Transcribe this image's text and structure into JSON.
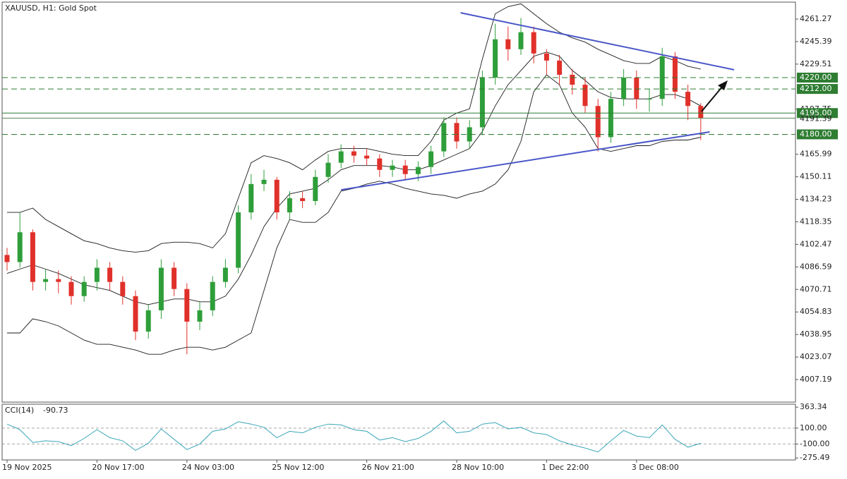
{
  "chart_data": {
    "type": "candlestick",
    "title": "XAUUSD, H1:  Gold Spot",
    "x": [
      "19 Nov 2025",
      null,
      null,
      null,
      null,
      null,
      null,
      "20 Nov 17:00",
      null,
      null,
      null,
      null,
      null,
      null,
      "24 Nov 03:00",
      null,
      null,
      null,
      null,
      null,
      null,
      "25 Nov 12:00",
      null,
      null,
      null,
      null,
      null,
      null,
      "26 Nov 21:00",
      null,
      null,
      null,
      null,
      null,
      null,
      "28 Nov 10:00",
      null,
      null,
      null,
      null,
      null,
      null,
      "1 Dec 22:00",
      null,
      null,
      null,
      null,
      null,
      null,
      "3 Dec 08:00",
      null,
      null,
      null,
      null,
      null
    ],
    "open": [
      4095,
      4090,
      4111,
      4076,
      4078,
      4076,
      4066,
      4076,
      4086,
      4076,
      4066,
      4041,
      4056,
      4086,
      4071,
      4048,
      4056,
      4076,
      4086,
      4125,
      4145,
      4148,
      4125,
      4135,
      4133,
      4150,
      4160,
      4168,
      4165,
      4163,
      4155,
      4158,
      4152,
      4157,
      4168,
      4188,
      4175,
      4185,
      4220,
      4247,
      4240,
      4252,
      4237,
      4232,
      4222,
      4215,
      4200,
      4178,
      4205,
      4220,
      4205,
      4205,
      4235,
      4210,
      4200
    ],
    "high": [
      4100,
      4125,
      4113,
      4085,
      4084,
      4080,
      4080,
      4092,
      4090,
      4080,
      4070,
      4060,
      4092,
      4090,
      4075,
      4062,
      4080,
      4092,
      4130,
      4152,
      4155,
      4150,
      4140,
      4140,
      4155,
      4166,
      4173,
      4172,
      4170,
      4166,
      4162,
      4162,
      4161,
      4172,
      4192,
      4192,
      4190,
      4225,
      4258,
      4256,
      4262,
      4256,
      4240,
      4236,
      4226,
      4220,
      4205,
      4210,
      4226,
      4225,
      4212,
      4241,
      4238,
      4215,
      4202
    ],
    "low": [
      4084,
      4086,
      4070,
      4070,
      4068,
      4060,
      4062,
      4070,
      4070,
      4060,
      4035,
      4036,
      4050,
      4066,
      4025,
      4042,
      4052,
      4072,
      4082,
      4120,
      4140,
      4120,
      4120,
      4128,
      4130,
      4146,
      4156,
      4160,
      4158,
      4150,
      4150,
      4148,
      4147,
      4152,
      4164,
      4170,
      4170,
      4180,
      4215,
      4232,
      4236,
      4230,
      4222,
      4215,
      4208,
      4195,
      4168,
      4174,
      4200,
      4198,
      4196,
      4200,
      4205,
      4190,
      4176
    ],
    "close": [
      4090,
      4111,
      4076,
      4078,
      4076,
      4066,
      4076,
      4086,
      4076,
      4066,
      4041,
      4056,
      4086,
      4071,
      4048,
      4056,
      4076,
      4086,
      4125,
      4145,
      4148,
      4125,
      4135,
      4133,
      4150,
      4160,
      4168,
      4165,
      4163,
      4155,
      4158,
      4152,
      4157,
      4168,
      4188,
      4175,
      4185,
      4220,
      4247,
      4240,
      4252,
      4237,
      4232,
      4222,
      4215,
      4200,
      4178,
      4205,
      4220,
      4205,
      4205,
      4235,
      4210,
      4200,
      4191.39
    ],
    "up_color": "#2e9e3a",
    "down_color": "#e0302a",
    "bollinger": {
      "color": "#1a1a1a",
      "upper": [
        4125,
        4125,
        4128,
        4120,
        4115,
        4110,
        4105,
        4103,
        4100,
        4098,
        4097,
        4098,
        4103,
        4104,
        4104,
        4103,
        4100,
        4110,
        4135,
        4160,
        4165,
        4163,
        4160,
        4155,
        4162,
        4168,
        4170,
        4170,
        4170,
        4168,
        4166,
        4165,
        4165,
        4175,
        4190,
        4195,
        4198,
        4233,
        4265,
        4270,
        4272,
        4265,
        4258,
        4252,
        4248,
        4245,
        4240,
        4236,
        4232,
        4230,
        4230,
        4235,
        4232,
        4228,
        4226
      ],
      "middle": [
        4082,
        4085,
        4088,
        4085,
        4082,
        4078,
        4074,
        4072,
        4070,
        4066,
        4062,
        4060,
        4062,
        4064,
        4064,
        4062,
        4062,
        4066,
        4078,
        4095,
        4115,
        4128,
        4138,
        4140,
        4142,
        4148,
        4155,
        4158,
        4158,
        4158,
        4157,
        4155,
        4155,
        4158,
        4162,
        4166,
        4170,
        4182,
        4200,
        4215,
        4225,
        4235,
        4238,
        4235,
        4225,
        4218,
        4210,
        4206,
        4205,
        4205,
        4205,
        4208,
        4208,
        4205,
        4200
      ],
      "lower": [
        4040,
        4040,
        4050,
        4048,
        4045,
        4040,
        4035,
        4032,
        4032,
        4030,
        4028,
        4025,
        4025,
        4028,
        4030,
        4030,
        4028,
        4030,
        4035,
        4040,
        4070,
        4100,
        4120,
        4118,
        4118,
        4125,
        4140,
        4142,
        4145,
        4147,
        4145,
        4142,
        4140,
        4138,
        4137,
        4135,
        4138,
        4140,
        4145,
        4155,
        4175,
        4210,
        4222,
        4215,
        4195,
        4185,
        4170,
        4168,
        4170,
        4172,
        4172,
        4175,
        4176,
        4176,
        4178
      ]
    },
    "ylim": [
      3991.3,
      4273.2
    ],
    "yticks": [
      4261.27,
      4245.39,
      4229.51,
      4197.75,
      4165.99,
      4150.11,
      4134.23,
      4118.35,
      4102.47,
      4086.59,
      4070.71,
      4054.83,
      4038.95,
      4023.07,
      4007.19
    ],
    "levels": [
      {
        "value": 4220,
        "label": "4220.00",
        "dashed": true
      },
      {
        "value": 4212,
        "label": "4212.00",
        "dashed": true
      },
      {
        "value": 4195,
        "label": "4195.00",
        "dashed": false
      },
      {
        "value": 4180,
        "label": "4180.00",
        "dashed": true
      }
    ],
    "level_color": "#2e7d32",
    "price_line": 4191.39,
    "trendline_color": "#4a57c8",
    "trendlines": [
      {
        "x": [
          35.3,
          56.6
        ],
        "y": [
          4265.7,
          4225.5
        ]
      },
      {
        "x": [
          26.0,
          54.7
        ],
        "y": [
          4140.9,
          4181.7
        ]
      }
    ],
    "cci": {
      "label": "CCI(14)",
      "color": "#3aa6b9",
      "values": [
        150,
        80,
        -80,
        -60,
        -70,
        -120,
        -30,
        80,
        -20,
        -60,
        -180,
        -90,
        90,
        -40,
        -170,
        -100,
        60,
        90,
        180,
        150,
        110,
        -20,
        60,
        40,
        110,
        150,
        140,
        80,
        60,
        -50,
        -20,
        -70,
        -30,
        60,
        190,
        40,
        60,
        150,
        170,
        90,
        110,
        40,
        20,
        -60,
        -110,
        -150,
        -200,
        -60,
        70,
        0,
        -20,
        140,
        -40,
        -140,
        -90.73
      ],
      "ylim": [
        -300,
        400
      ],
      "yticks": [
        363.34,
        {
          "value": 100,
          "label": "100.00"
        },
        {
          "value": -100,
          "label": "-100.00"
        },
        -275.49
      ],
      "levels": [
        100,
        -100
      ]
    }
  }
}
